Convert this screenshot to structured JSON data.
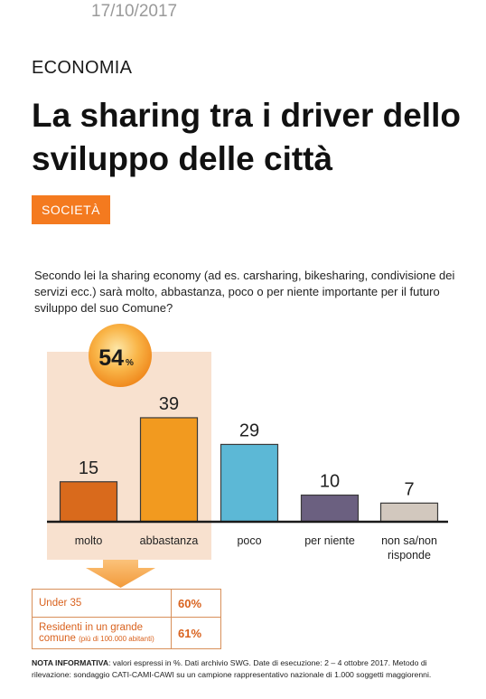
{
  "header": {
    "date": "17/10/2017",
    "section": "ECONOMIA",
    "headline": "La sharing tra i driver dello sviluppo delle città",
    "tag": "SOCIETÀ"
  },
  "question": "Secondo lei la sharing economy (ad es. carsharing, bikesharing, condivisione dei servizi ecc.) sarà molto, abbastanza, poco o per niente importante per il futuro sviluppo del suo Comune?",
  "chart_data": {
    "type": "bar",
    "categories": [
      "molto",
      "abbastanza",
      "poco",
      "per niente",
      "non sa/non risponde"
    ],
    "values": [
      15,
      39,
      29,
      10,
      7
    ],
    "colors": [
      "#d96a1c",
      "#f29a1f",
      "#5cb8d6",
      "#6b6080",
      "#d2c8be"
    ],
    "highlight_total": {
      "value": "54",
      "unit": "%"
    },
    "title": "",
    "xlabel": "",
    "ylabel": ""
  },
  "subgroups": {
    "rows": [
      {
        "label": "Under 35",
        "small": "",
        "value": "60%"
      },
      {
        "label": "Residenti in un grande comune",
        "small": "(più di 100.000 abitanti)",
        "value": "61%"
      }
    ]
  },
  "note": {
    "label": "NOTA INFORMATIVA",
    "text": ": valori espressi in %. Dati archivio SWG. Date di esecuzione: 2 – 4 ottobre 2017. Metodo di rilevazione: sondaggio CATI-CAMI-CAWI su un campione rappresentativo nazionale di 1.000 soggetti maggiorenni."
  },
  "theme": {
    "accent": "#f47a1f",
    "highlight_bg": "#f8e1cf",
    "arrow": "#f6a04a"
  }
}
